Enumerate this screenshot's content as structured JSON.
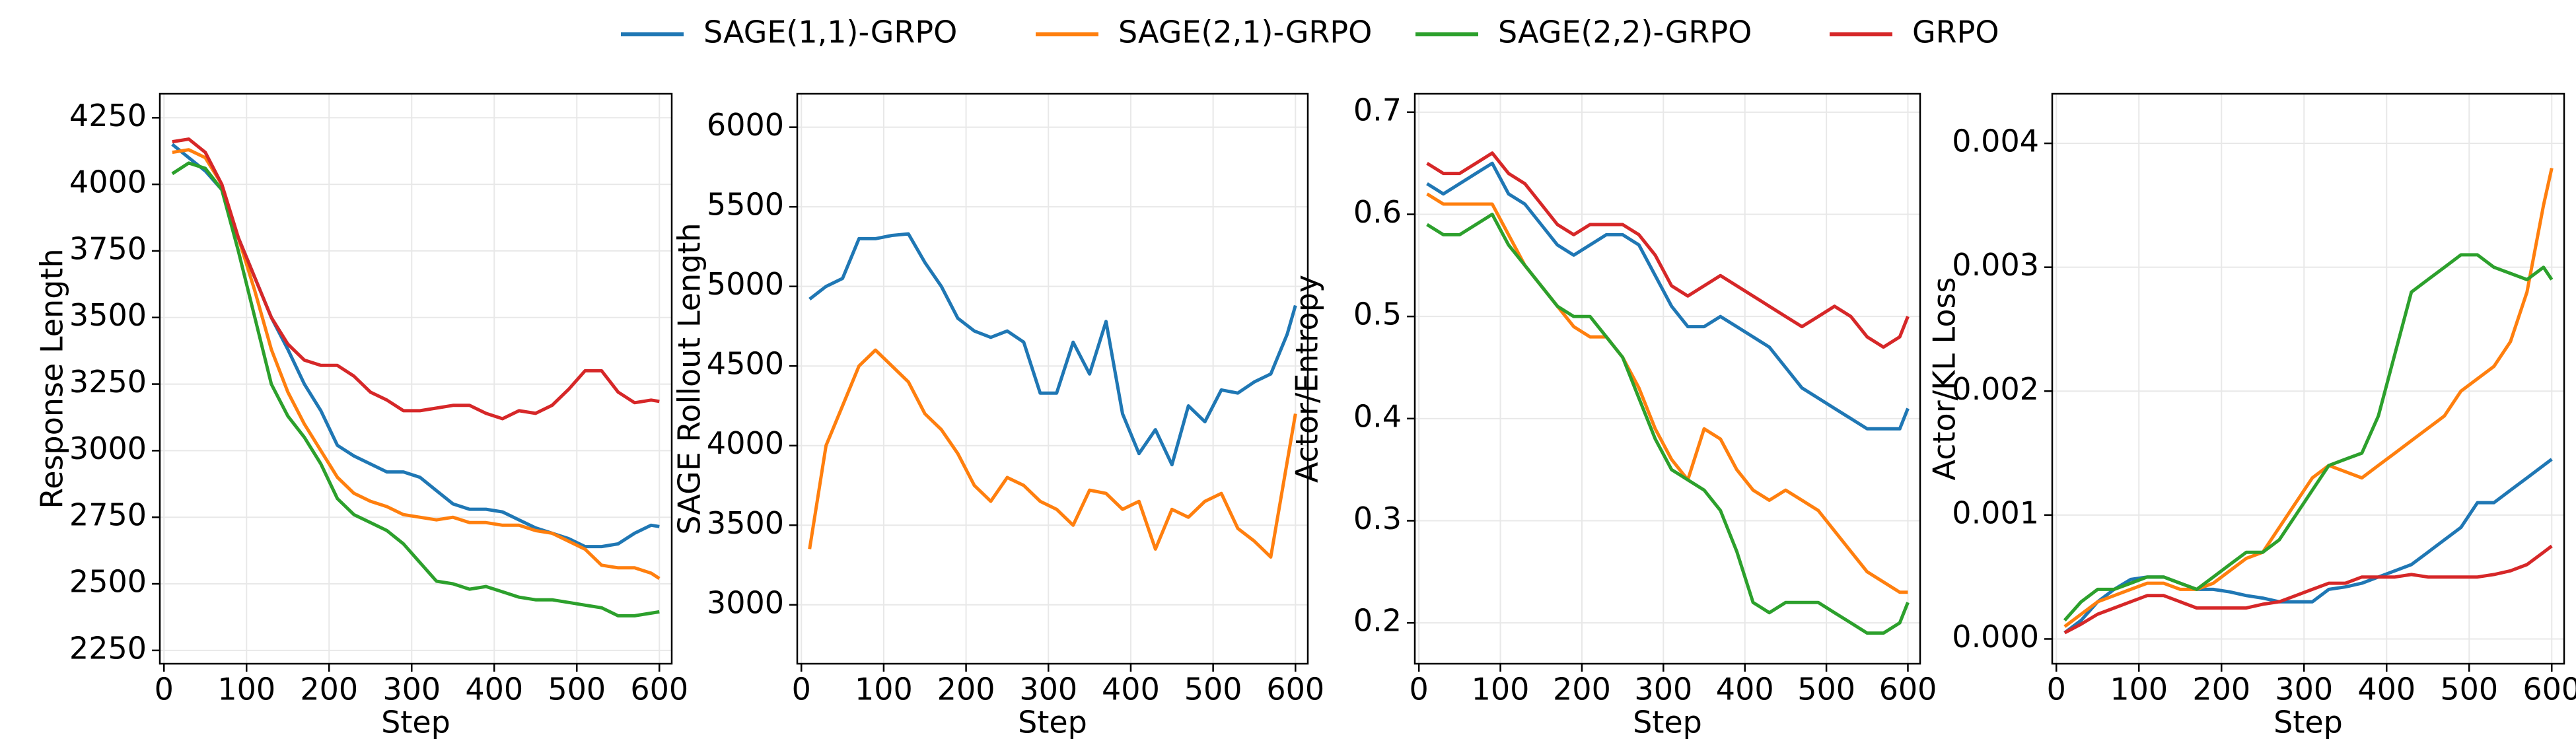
{
  "chart_data": [
    {
      "type": "line",
      "xlabel": "Step",
      "ylabel": "Response Length",
      "legend": "top",
      "grid": true,
      "x": [
        10,
        30,
        50,
        70,
        90,
        110,
        130,
        150,
        170,
        190,
        210,
        230,
        250,
        270,
        290,
        310,
        330,
        350,
        370,
        390,
        410,
        430,
        450,
        470,
        490,
        510,
        530,
        550,
        570,
        590,
        600
      ],
      "xlim": [
        -5,
        615
      ],
      "xticks": [
        0,
        100,
        200,
        300,
        400,
        500,
        600
      ],
      "ylim": [
        2200,
        4340
      ],
      "yticks": [
        2250,
        2500,
        2750,
        3000,
        3250,
        3500,
        3750,
        4000,
        4250
      ],
      "series": [
        {
          "name": "SAGE(1,1)-GRPO",
          "color": "#1f77b4",
          "values": [
            4150,
            4100,
            4050,
            3980,
            3800,
            3650,
            3500,
            3380,
            3250,
            3150,
            3020,
            2980,
            2950,
            2920,
            2920,
            2900,
            2850,
            2800,
            2780,
            2780,
            2770,
            2740,
            2710,
            2690,
            2670,
            2640,
            2640,
            2650,
            2690,
            2720,
            2715
          ]
        },
        {
          "name": "SAGE(2,1)-GRPO",
          "color": "#ff7f0e",
          "values": [
            4120,
            4130,
            4100,
            4000,
            3800,
            3600,
            3380,
            3220,
            3100,
            3000,
            2900,
            2840,
            2810,
            2790,
            2760,
            2750,
            2740,
            2750,
            2730,
            2730,
            2720,
            2720,
            2700,
            2690,
            2660,
            2630,
            2570,
            2560,
            2560,
            2540,
            2520
          ]
        },
        {
          "name": "SAGE(2,2)-GRPO",
          "color": "#2ca02c",
          "values": [
            4040,
            4080,
            4060,
            3980,
            3750,
            3500,
            3250,
            3130,
            3050,
            2950,
            2820,
            2760,
            2730,
            2700,
            2650,
            2580,
            2510,
            2500,
            2480,
            2490,
            2470,
            2450,
            2440,
            2440,
            2430,
            2420,
            2410,
            2380,
            2380,
            2390,
            2395
          ]
        },
        {
          "name": "GRPO",
          "color": "#d62728",
          "values": [
            4160,
            4170,
            4120,
            4000,
            3800,
            3650,
            3500,
            3400,
            3340,
            3320,
            3320,
            3280,
            3220,
            3190,
            3150,
            3150,
            3160,
            3170,
            3170,
            3140,
            3120,
            3150,
            3140,
            3170,
            3230,
            3300,
            3300,
            3220,
            3180,
            3190,
            3185
          ]
        }
      ]
    },
    {
      "type": "line",
      "xlabel": "Step",
      "ylabel": "SAGE Rollout Length",
      "grid": true,
      "x": [
        10,
        30,
        50,
        70,
        90,
        110,
        130,
        150,
        170,
        190,
        210,
        230,
        250,
        270,
        290,
        310,
        330,
        350,
        370,
        390,
        410,
        430,
        450,
        470,
        490,
        510,
        530,
        550,
        570,
        590,
        600
      ],
      "xlim": [
        -5,
        615
      ],
      "xticks": [
        0,
        100,
        200,
        300,
        400,
        500,
        600
      ],
      "ylim": [
        2630,
        6210
      ],
      "yticks": [
        3000,
        3500,
        4000,
        4500,
        5000,
        5500,
        6000
      ],
      "series": [
        {
          "color": "#1f77b4",
          "values": [
            4920,
            5000,
            5050,
            5300,
            5300,
            5320,
            5330,
            5150,
            5000,
            4800,
            4720,
            4680,
            4720,
            4650,
            4330,
            4330,
            4650,
            4450,
            4780,
            4200,
            3950,
            4100,
            3880,
            4250,
            4150,
            4350,
            4330,
            4400,
            4450,
            4700,
            4880
          ]
        },
        {
          "color": "#ff7f0e",
          "values": [
            3350,
            4000,
            4250,
            4500,
            4600,
            4500,
            4400,
            4200,
            4100,
            3950,
            3750,
            3650,
            3800,
            3750,
            3650,
            3600,
            3500,
            3720,
            3700,
            3600,
            3650,
            3350,
            3600,
            3550,
            3650,
            3700,
            3480,
            3400,
            3300,
            3900,
            4200
          ]
        }
      ]
    },
    {
      "type": "line",
      "xlabel": "Step",
      "ylabel": "Actor/Entropy",
      "grid": true,
      "x": [
        10,
        30,
        50,
        70,
        90,
        110,
        130,
        150,
        170,
        190,
        210,
        230,
        250,
        270,
        290,
        310,
        330,
        350,
        370,
        390,
        410,
        430,
        450,
        470,
        490,
        510,
        530,
        550,
        570,
        590,
        600
      ],
      "xlim": [
        -5,
        615
      ],
      "xticks": [
        0,
        100,
        200,
        300,
        400,
        500,
        600
      ],
      "ylim": [
        0.16,
        0.718
      ],
      "yticks": [
        0.2,
        0.3,
        0.4,
        0.5,
        0.6,
        0.7
      ],
      "series": [
        {
          "color": "#1f77b4",
          "values": [
            0.63,
            0.62,
            0.63,
            0.64,
            0.65,
            0.62,
            0.61,
            0.59,
            0.57,
            0.56,
            0.57,
            0.58,
            0.58,
            0.57,
            0.54,
            0.51,
            0.49,
            0.49,
            0.5,
            0.49,
            0.48,
            0.47,
            0.45,
            0.43,
            0.42,
            0.41,
            0.4,
            0.39,
            0.39,
            0.39,
            0.41
          ]
        },
        {
          "color": "#ff7f0e",
          "values": [
            0.62,
            0.61,
            0.61,
            0.61,
            0.61,
            0.58,
            0.55,
            0.53,
            0.51,
            0.49,
            0.48,
            0.48,
            0.46,
            0.43,
            0.39,
            0.36,
            0.34,
            0.39,
            0.38,
            0.35,
            0.33,
            0.32,
            0.33,
            0.32,
            0.31,
            0.29,
            0.27,
            0.25,
            0.24,
            0.23,
            0.23
          ]
        },
        {
          "color": "#2ca02c",
          "values": [
            0.59,
            0.58,
            0.58,
            0.59,
            0.6,
            0.57,
            0.55,
            0.53,
            0.51,
            0.5,
            0.5,
            0.48,
            0.46,
            0.42,
            0.38,
            0.35,
            0.34,
            0.33,
            0.31,
            0.27,
            0.22,
            0.21,
            0.22,
            0.22,
            0.22,
            0.21,
            0.2,
            0.19,
            0.19,
            0.2,
            0.22
          ]
        },
        {
          "color": "#d62728",
          "values": [
            0.65,
            0.64,
            0.64,
            0.65,
            0.66,
            0.64,
            0.63,
            0.61,
            0.59,
            0.58,
            0.59,
            0.59,
            0.59,
            0.58,
            0.56,
            0.53,
            0.52,
            0.53,
            0.54,
            0.53,
            0.52,
            0.51,
            0.5,
            0.49,
            0.5,
            0.51,
            0.5,
            0.48,
            0.47,
            0.48,
            0.5
          ]
        }
      ]
    },
    {
      "type": "line",
      "xlabel": "Step",
      "ylabel": "Actor/KL Loss",
      "grid": true,
      "x": [
        10,
        30,
        50,
        70,
        90,
        110,
        130,
        150,
        170,
        190,
        210,
        230,
        250,
        270,
        290,
        310,
        330,
        350,
        370,
        390,
        410,
        430,
        450,
        470,
        490,
        510,
        530,
        550,
        570,
        590,
        600
      ],
      "xlim": [
        -5,
        615
      ],
      "xticks": [
        0,
        100,
        200,
        300,
        400,
        500,
        600
      ],
      "ylim": [
        -0.0002,
        0.0044
      ],
      "yticks": [
        {
          "value": 0,
          "label": "0.000"
        },
        {
          "value": 0.001,
          "label": "0.001"
        },
        {
          "value": 0.002,
          "label": "0.002"
        },
        {
          "value": 0.003,
          "label": "0.003"
        },
        {
          "value": 0.004,
          "label": "0.004"
        }
      ],
      "series": [
        {
          "color": "#1f77b4",
          "values": [
            5e-05,
            0.00015,
            0.0003,
            0.0004,
            0.00048,
            0.0005,
            0.0005,
            0.00045,
            0.0004,
            0.0004,
            0.00038,
            0.00035,
            0.00033,
            0.0003,
            0.0003,
            0.0003,
            0.0004,
            0.00042,
            0.00045,
            0.0005,
            0.00055,
            0.0006,
            0.0007,
            0.0008,
            0.0009,
            0.0011,
            0.0011,
            0.0012,
            0.0013,
            0.0014,
            0.00145
          ]
        },
        {
          "color": "#ff7f0e",
          "values": [
            0.0001,
            0.0002,
            0.0003,
            0.00035,
            0.0004,
            0.00045,
            0.00045,
            0.0004,
            0.0004,
            0.00045,
            0.00055,
            0.00065,
            0.0007,
            0.0009,
            0.0011,
            0.0013,
            0.0014,
            0.00135,
            0.0013,
            0.0014,
            0.0015,
            0.0016,
            0.0017,
            0.0018,
            0.002,
            0.0021,
            0.0022,
            0.0024,
            0.0028,
            0.0035,
            0.0038
          ]
        },
        {
          "color": "#2ca02c",
          "values": [
            0.00015,
            0.0003,
            0.0004,
            0.0004,
            0.00045,
            0.0005,
            0.0005,
            0.00045,
            0.0004,
            0.0005,
            0.0006,
            0.0007,
            0.0007,
            0.0008,
            0.001,
            0.0012,
            0.0014,
            0.00145,
            0.0015,
            0.0018,
            0.0023,
            0.0028,
            0.0029,
            0.003,
            0.0031,
            0.0031,
            0.003,
            0.00295,
            0.0029,
            0.003,
            0.0029
          ]
        },
        {
          "color": "#d62728",
          "values": [
            5e-05,
            0.00012,
            0.0002,
            0.00025,
            0.0003,
            0.00035,
            0.00035,
            0.0003,
            0.00025,
            0.00025,
            0.00025,
            0.00025,
            0.00028,
            0.0003,
            0.00035,
            0.0004,
            0.00045,
            0.00045,
            0.0005,
            0.0005,
            0.0005,
            0.00052,
            0.0005,
            0.0005,
            0.0005,
            0.0005,
            0.00052,
            0.00055,
            0.0006,
            0.0007,
            0.00075
          ]
        }
      ]
    }
  ]
}
